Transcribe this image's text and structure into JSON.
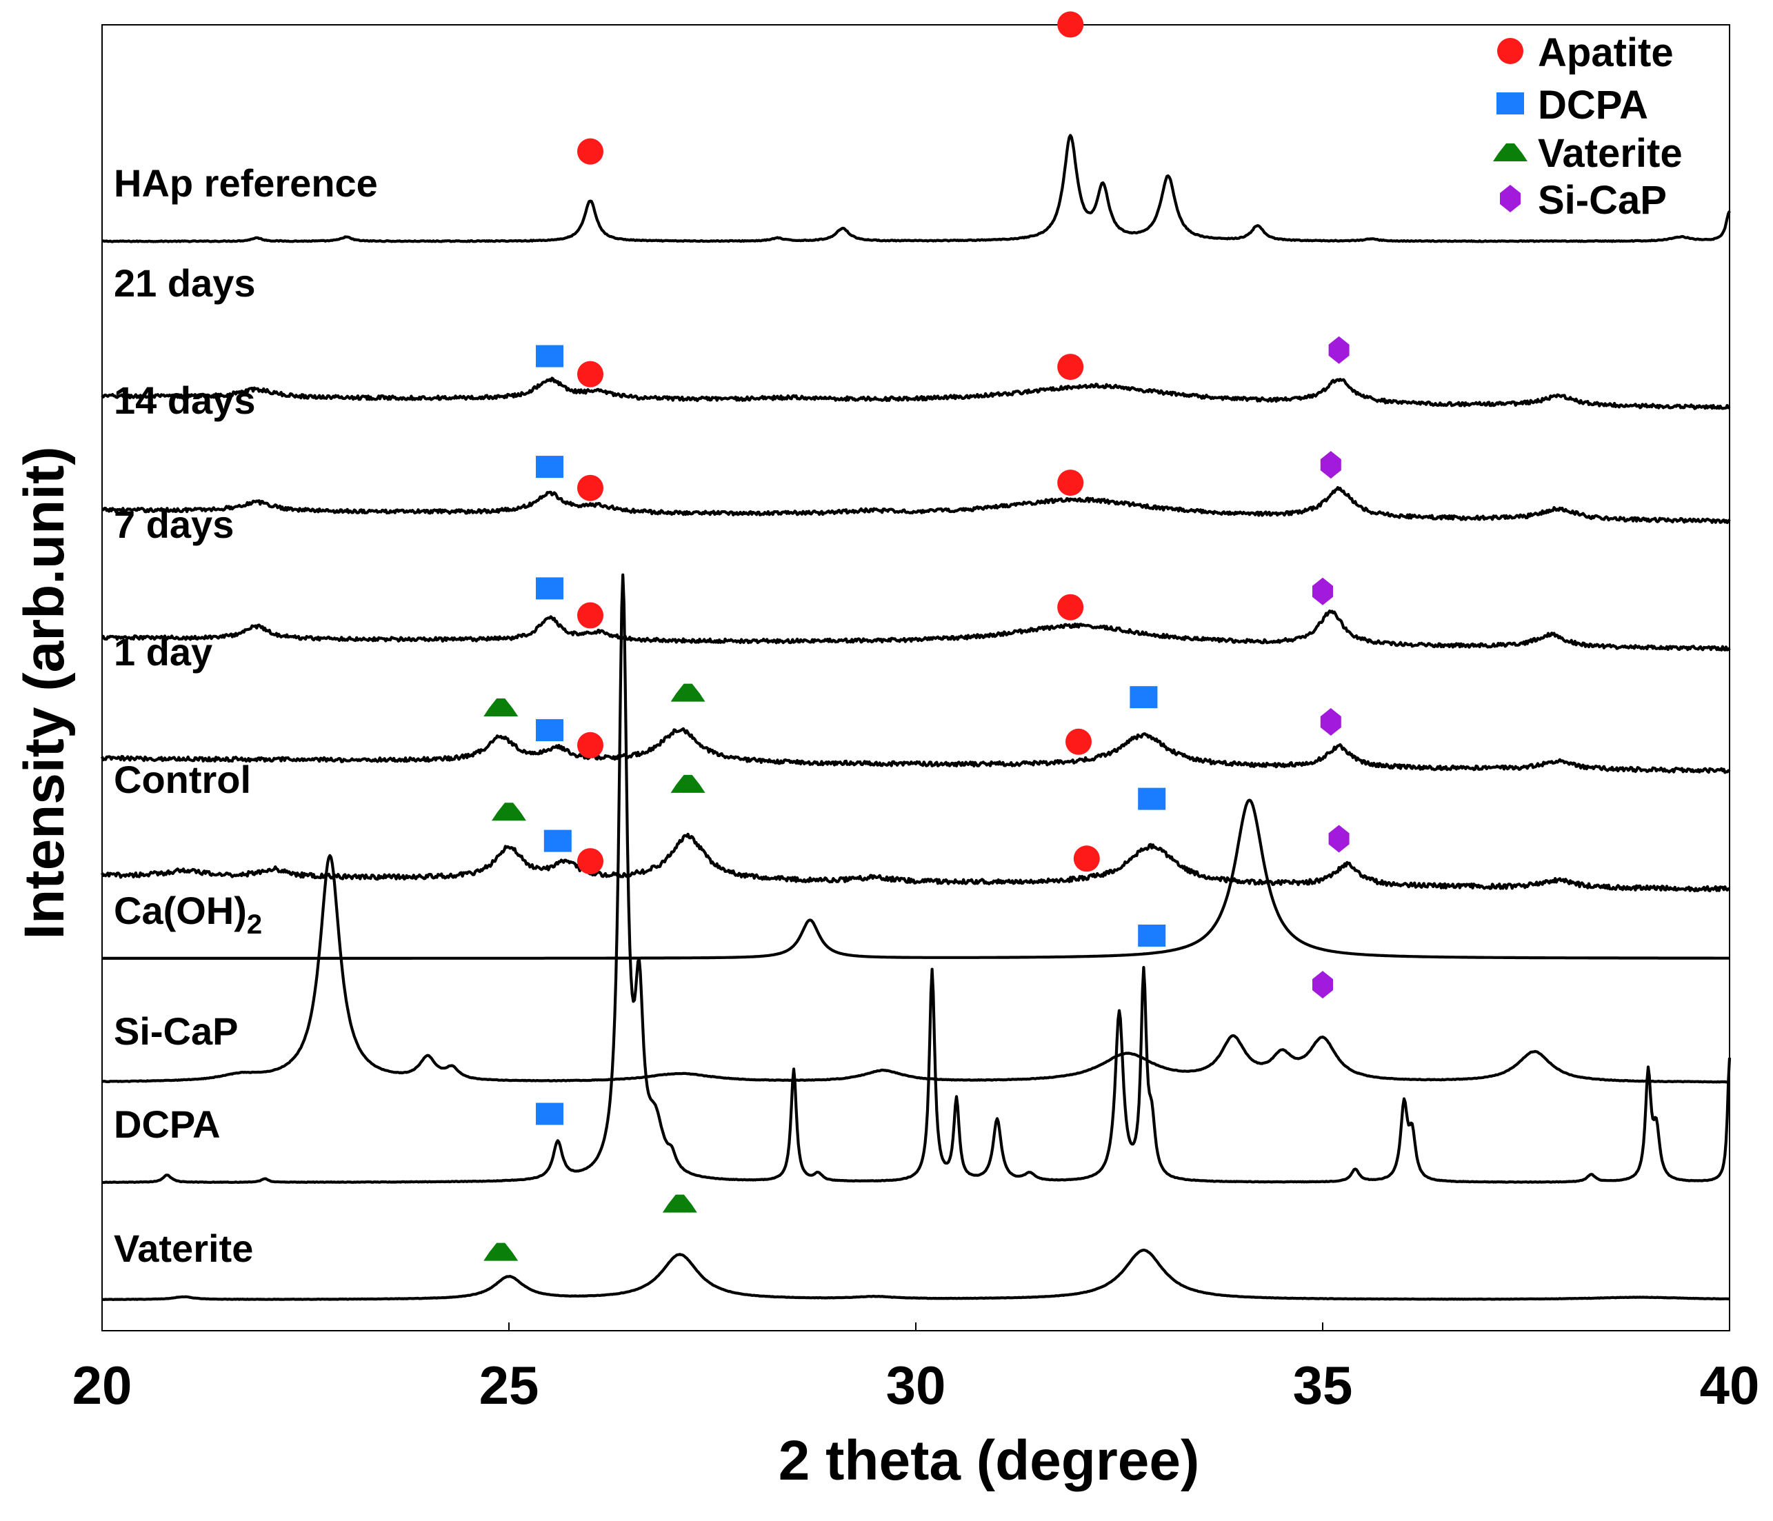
{
  "chart_data": {
    "type": "line",
    "title": "",
    "xlabel": "2 theta (degree)",
    "ylabel": "Intensity (arb.unit)",
    "xlim": [
      20,
      40
    ],
    "xticks": [
      "20",
      "25",
      "30",
      "35",
      "40"
    ],
    "grid": false,
    "legend_position": "top-right",
    "legend": [
      {
        "name": "Apatite",
        "marker": "circle",
        "color": "#ff1a1a"
      },
      {
        "name": "DCPA",
        "marker": "square",
        "color": "#1a7cff"
      },
      {
        "name": "Vaterite",
        "marker": "triangle",
        "color": "#0a800a"
      },
      {
        "name": "Si-CaP",
        "marker": "diamond",
        "color": "#a21adc"
      }
    ],
    "series": [
      {
        "name": "HAp reference",
        "label": "HAp reference",
        "baseline": 0,
        "peaks": [
          [
            21.9,
            0.08,
            0.08
          ],
          [
            23.0,
            0.1,
            0.08
          ],
          [
            26.0,
            0.95,
            0.09
          ],
          [
            28.3,
            0.07,
            0.09
          ],
          [
            29.1,
            0.3,
            0.1
          ],
          [
            31.9,
            2.4,
            0.1
          ],
          [
            32.3,
            1.2,
            0.09
          ],
          [
            33.1,
            1.5,
            0.11
          ],
          [
            34.2,
            0.35,
            0.09
          ],
          [
            35.6,
            0.05,
            0.1
          ],
          [
            39.4,
            0.1,
            0.15
          ],
          [
            40.0,
            0.7,
            0.05
          ]
        ],
        "noise": 0.01,
        "slope": 0
      },
      {
        "name": "21 days",
        "label": "21 days",
        "baseline": 0,
        "peaks": [
          [
            21.9,
            0.25,
            0.25
          ],
          [
            25.5,
            0.6,
            0.2
          ],
          [
            26.1,
            0.2,
            0.25
          ],
          [
            28.5,
            0.07,
            0.5
          ],
          [
            32.2,
            0.55,
            1.1
          ],
          [
            35.2,
            0.75,
            0.2
          ],
          [
            37.9,
            0.3,
            0.25
          ]
        ],
        "noise": 0.06,
        "slope": -0.018
      },
      {
        "name": "14 days",
        "label": "14 days",
        "baseline": 0,
        "peaks": [
          [
            21.9,
            0.28,
            0.25
          ],
          [
            25.5,
            0.6,
            0.2
          ],
          [
            26.1,
            0.2,
            0.25
          ],
          [
            29.4,
            0.08,
            0.3
          ],
          [
            32.0,
            0.55,
            1.1
          ],
          [
            35.2,
            0.9,
            0.2
          ],
          [
            37.9,
            0.35,
            0.25
          ]
        ],
        "noise": 0.06,
        "slope": -0.018
      },
      {
        "name": "7 days",
        "label": "7 days",
        "baseline": 0,
        "peaks": [
          [
            21.9,
            0.4,
            0.18
          ],
          [
            25.5,
            0.75,
            0.15
          ],
          [
            26.1,
            0.25,
            0.2
          ],
          [
            32.0,
            0.6,
            1.0
          ],
          [
            35.1,
            1.05,
            0.18
          ],
          [
            37.8,
            0.4,
            0.22
          ]
        ],
        "noise": 0.06,
        "slope": -0.018
      },
      {
        "name": "1 day",
        "label": "1 day",
        "baseline": 0,
        "peaks": [
          [
            24.9,
            0.7,
            0.2
          ],
          [
            25.6,
            0.35,
            0.18
          ],
          [
            27.1,
            0.95,
            0.28
          ],
          [
            32.8,
            0.9,
            0.35
          ],
          [
            35.2,
            0.6,
            0.18
          ],
          [
            37.9,
            0.25,
            0.22
          ]
        ],
        "noise": 0.06,
        "slope": -0.018
      },
      {
        "name": "Control",
        "label": "Control",
        "baseline": 0,
        "peaks": [
          [
            21.0,
            0.15,
            0.25
          ],
          [
            22.1,
            0.2,
            0.2
          ],
          [
            25.0,
            0.8,
            0.2
          ],
          [
            25.7,
            0.4,
            0.18
          ],
          [
            27.2,
            1.15,
            0.25
          ],
          [
            29.5,
            0.12,
            0.2
          ],
          [
            32.9,
            1.0,
            0.35
          ],
          [
            35.3,
            0.55,
            0.18
          ],
          [
            37.9,
            0.2,
            0.22
          ]
        ],
        "noise": 0.06,
        "slope": -0.018
      },
      {
        "name": "Ca(OH)2",
        "label": "Ca(OH)",
        "label_subscript": "2",
        "baseline": 0,
        "peaks": [
          [
            28.7,
            0.65,
            0.14
          ],
          [
            34.1,
            2.7,
            0.22
          ]
        ],
        "noise": 0.0,
        "slope": 0
      },
      {
        "name": "Si-CaP",
        "label": "Si-CaP",
        "baseline": 0,
        "peaks": [
          [
            21.7,
            0.1,
            0.3
          ],
          [
            22.8,
            4.1,
            0.15
          ],
          [
            24.0,
            0.4,
            0.12
          ],
          [
            24.3,
            0.2,
            0.1
          ],
          [
            27.1,
            0.15,
            0.5
          ],
          [
            29.6,
            0.2,
            0.3
          ],
          [
            32.6,
            0.5,
            0.4
          ],
          [
            33.9,
            0.75,
            0.18
          ],
          [
            34.5,
            0.4,
            0.15
          ],
          [
            35.0,
            0.75,
            0.2
          ],
          [
            37.6,
            0.55,
            0.25
          ]
        ],
        "noise": 0.005,
        "slope": 0
      },
      {
        "name": "DCPA",
        "label": "DCPA",
        "baseline": 0,
        "peaks": [
          [
            20.8,
            0.12,
            0.06
          ],
          [
            22.0,
            0.06,
            0.05
          ],
          [
            25.6,
            0.6,
            0.07
          ],
          [
            26.4,
            9.5,
            0.06
          ],
          [
            26.6,
            2.6,
            0.06
          ],
          [
            26.8,
            0.8,
            0.12
          ],
          [
            27.0,
            0.22,
            0.06
          ],
          [
            28.5,
            1.8,
            0.04
          ],
          [
            28.8,
            0.12,
            0.06
          ],
          [
            30.2,
            3.4,
            0.04
          ],
          [
            30.5,
            1.3,
            0.04
          ],
          [
            31.0,
            1.0,
            0.06
          ],
          [
            31.4,
            0.12,
            0.08
          ],
          [
            32.5,
            2.7,
            0.06
          ],
          [
            32.8,
            3.2,
            0.04
          ],
          [
            32.9,
            0.8,
            0.05
          ],
          [
            35.4,
            0.2,
            0.06
          ],
          [
            36.0,
            1.2,
            0.05
          ],
          [
            36.1,
            0.7,
            0.05
          ],
          [
            38.3,
            0.12,
            0.06
          ],
          [
            39.0,
            1.7,
            0.04
          ],
          [
            39.1,
            0.8,
            0.05
          ],
          [
            40.0,
            2.0,
            0.03
          ]
        ],
        "noise": 0.004,
        "slope": 0
      },
      {
        "name": "Vaterite",
        "label": "Vaterite",
        "baseline": 0,
        "peaks": [
          [
            21.0,
            0.06,
            0.15
          ],
          [
            25.0,
            0.5,
            0.22
          ],
          [
            27.1,
            1.0,
            0.28
          ],
          [
            29.5,
            0.05,
            0.3
          ],
          [
            32.8,
            1.1,
            0.3
          ],
          [
            38.9,
            0.05,
            0.7
          ]
        ],
        "noise": 0.004,
        "slope": 0
      }
    ],
    "markers": [
      {
        "series": "HAp reference",
        "type": "circle",
        "x": 26.0,
        "above": 1.15
      },
      {
        "series": "HAp reference",
        "type": "circle",
        "x": 31.9,
        "above": 2.6
      },
      {
        "series": "21 days",
        "type": "square",
        "x": 25.5,
        "above": 0.75
      },
      {
        "series": "21 days",
        "type": "circle",
        "x": 26.0,
        "above": 0.55
      },
      {
        "series": "21 days",
        "type": "circle",
        "x": 31.9,
        "above": 0.65
      },
      {
        "series": "21 days",
        "type": "diamond",
        "x": 35.2,
        "above": 0.95
      },
      {
        "series": "14 days",
        "type": "square",
        "x": 25.5,
        "above": 0.85
      },
      {
        "series": "14 days",
        "type": "circle",
        "x": 26.0,
        "above": 0.55
      },
      {
        "series": "14 days",
        "type": "circle",
        "x": 31.9,
        "above": 0.55
      },
      {
        "series": "14 days",
        "type": "diamond",
        "x": 35.1,
        "above": 0.95
      },
      {
        "series": "7 days",
        "type": "square",
        "x": 25.5,
        "above": 0.9
      },
      {
        "series": "7 days",
        "type": "circle",
        "x": 26.0,
        "above": 0.55
      },
      {
        "series": "7 days",
        "type": "circle",
        "x": 31.9,
        "above": 0.6
      },
      {
        "series": "7 days",
        "type": "diamond",
        "x": 35.0,
        "above": 0.9
      },
      {
        "series": "1 day",
        "type": "triangle",
        "x": 24.9,
        "above": 0.85
      },
      {
        "series": "1 day",
        "type": "square",
        "x": 25.5,
        "above": 0.55
      },
      {
        "series": "1 day",
        "type": "circle",
        "x": 26.0,
        "above": 0.35
      },
      {
        "series": "1 day",
        "type": "triangle",
        "x": 27.2,
        "above": 1.2
      },
      {
        "series": "1 day",
        "type": "circle",
        "x": 32.0,
        "above": 0.55
      },
      {
        "series": "1 day",
        "type": "square",
        "x": 32.8,
        "above": 1.1
      },
      {
        "series": "1 day",
        "type": "diamond",
        "x": 35.1,
        "above": 0.85
      },
      {
        "series": "Control",
        "type": "triangle",
        "x": 25.0,
        "above": 0.95
      },
      {
        "series": "Control",
        "type": "square",
        "x": 25.6,
        "above": 0.6
      },
      {
        "series": "Control",
        "type": "circle",
        "x": 26.0,
        "above": 0.3
      },
      {
        "series": "Control",
        "type": "triangle",
        "x": 27.2,
        "above": 1.4
      },
      {
        "series": "Control",
        "type": "circle",
        "x": 32.1,
        "above": 0.5
      },
      {
        "series": "Control",
        "type": "square",
        "x": 32.9,
        "above": 1.25
      },
      {
        "series": "Control",
        "type": "diamond",
        "x": 35.2,
        "above": 0.8
      },
      {
        "series": "Ca(OH)2",
        "type": "square",
        "x": 32.9,
        "above": 0.3
      },
      {
        "series": "Si-CaP",
        "type": "diamond",
        "x": 35.0,
        "above": 0.95
      },
      {
        "series": "DCPA",
        "type": "square",
        "x": 25.5,
        "above": 0.85
      },
      {
        "series": "Vaterite",
        "type": "triangle",
        "x": 24.9,
        "above": 0.65
      },
      {
        "series": "Vaterite",
        "type": "triangle",
        "x": 27.1,
        "above": 1.15
      }
    ]
  }
}
